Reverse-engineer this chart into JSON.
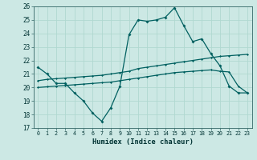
{
  "xlabel": "Humidex (Indice chaleur)",
  "background_color": "#cce8e4",
  "grid_color": "#b0d8d0",
  "line_color": "#006060",
  "x_hours": [
    0,
    1,
    2,
    3,
    4,
    5,
    6,
    7,
    8,
    9,
    10,
    11,
    12,
    13,
    14,
    15,
    16,
    17,
    18,
    19,
    20,
    21,
    22,
    23
  ],
  "curve1": [
    21.5,
    21.0,
    20.3,
    20.3,
    19.6,
    19.0,
    18.1,
    17.5,
    18.5,
    20.1,
    23.9,
    25.0,
    24.9,
    25.0,
    25.2,
    25.9,
    24.6,
    23.4,
    23.6,
    22.5,
    21.6,
    20.1,
    19.6,
    19.6
  ],
  "line_upper": [
    20.5,
    20.6,
    20.65,
    20.7,
    20.75,
    20.8,
    20.85,
    20.9,
    21.0,
    21.1,
    21.2,
    21.4,
    21.5,
    21.6,
    21.7,
    21.8,
    21.9,
    22.0,
    22.1,
    22.2,
    22.3,
    22.35,
    22.4,
    22.45
  ],
  "line_lower": [
    20.0,
    20.05,
    20.1,
    20.15,
    20.2,
    20.25,
    20.3,
    20.35,
    20.4,
    20.5,
    20.6,
    20.7,
    20.8,
    20.9,
    21.0,
    21.1,
    21.15,
    21.2,
    21.25,
    21.3,
    21.2,
    21.15,
    20.1,
    19.6
  ],
  "ylim": [
    17,
    26
  ],
  "yticks": [
    17,
    18,
    19,
    20,
    21,
    22,
    23,
    24,
    25,
    26
  ],
  "xticks": [
    0,
    1,
    2,
    3,
    4,
    5,
    6,
    7,
    8,
    9,
    10,
    11,
    12,
    13,
    14,
    15,
    16,
    17,
    18,
    19,
    20,
    21,
    22,
    23
  ]
}
